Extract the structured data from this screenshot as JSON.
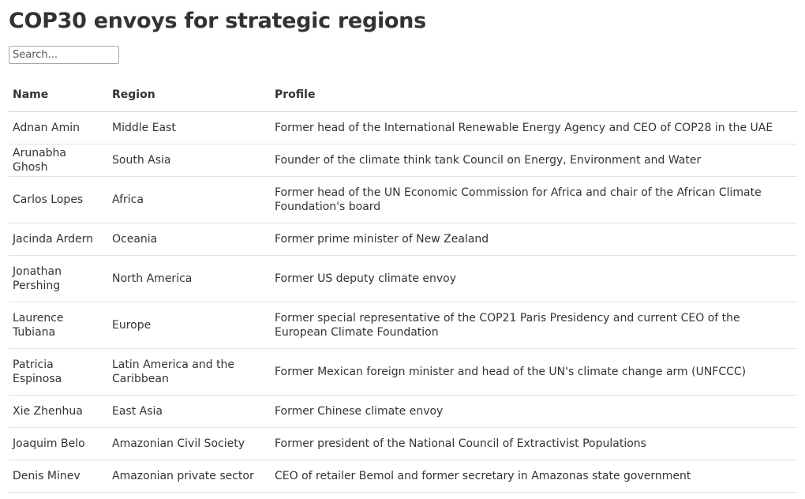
{
  "title": "COP30 envoys for strategic regions",
  "search": {
    "placeholder": "Search...",
    "value": ""
  },
  "table": {
    "columns": [
      "Name",
      "Region",
      "Profile"
    ],
    "rows": [
      {
        "name": "Adnan Amin",
        "region": "Middle East",
        "profile": "Former head of the International Renewable Energy Agency and CEO of COP28 in the UAE"
      },
      {
        "name": "Arunabha Ghosh",
        "region": "South Asia",
        "profile": "Founder of the climate think tank Council on Energy, Environment and Water"
      },
      {
        "name": "Carlos Lopes",
        "region": "Africa",
        "profile": "Former head of the UN Economic Commission for Africa and chair of the African Climate Foundation's board"
      },
      {
        "name": "Jacinda Ardern",
        "region": "Oceania",
        "profile": "Former prime minister of New Zealand"
      },
      {
        "name": "Jonathan Pershing",
        "region": "North America",
        "profile": "Former US deputy climate envoy"
      },
      {
        "name": "Laurence Tubiana",
        "region": "Europe",
        "profile": "Former special representative of the COP21 Paris Presidency and current CEO of the European Climate Foundation"
      },
      {
        "name": "Patricia Espinosa",
        "region": "Latin America and the Caribbean",
        "profile": "Former Mexican foreign minister and head of the UN's climate change arm (UNFCCC)"
      },
      {
        "name": "Xie Zhenhua",
        "region": "East Asia",
        "profile": "Former Chinese climate envoy"
      },
      {
        "name": "Joaquim Belo",
        "region": "Amazonian Civil Society",
        "profile": "Former president of the National Council of Extractivist Populations"
      },
      {
        "name": "Denis Minev",
        "region": "Amazonian private sector",
        "profile": "CEO of retailer Bemol and former secretary in Amazonas state government"
      }
    ]
  }
}
